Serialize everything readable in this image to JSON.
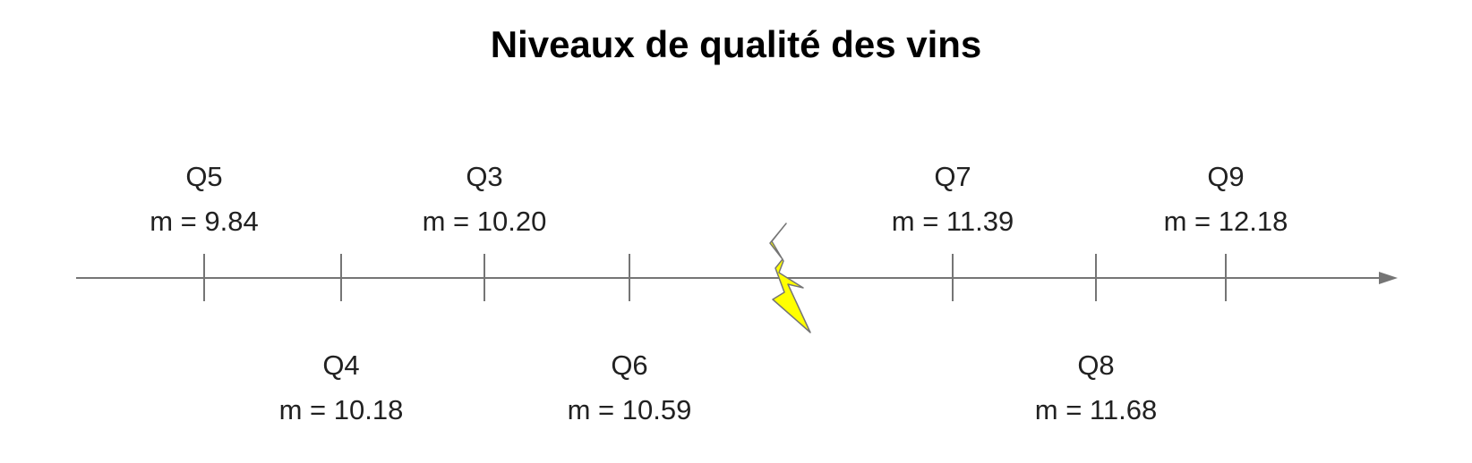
{
  "title": "Niveaux de qualité des vins",
  "line_color": "#757575",
  "bolt_fill": "#ffff00",
  "bolt_stroke": "#757575",
  "levels": [
    {
      "name": "Q5",
      "value": "m = 9.84"
    },
    {
      "name": "Q4",
      "value": "m = 10.18"
    },
    {
      "name": "Q3",
      "value": "m = 10.20"
    },
    {
      "name": "Q6",
      "value": "m = 10.59"
    },
    {
      "name": "Q7",
      "value": "m = 11.39"
    },
    {
      "name": "Q8",
      "value": "m = 11.68"
    },
    {
      "name": "Q9",
      "value": "m = 12.18"
    }
  ]
}
